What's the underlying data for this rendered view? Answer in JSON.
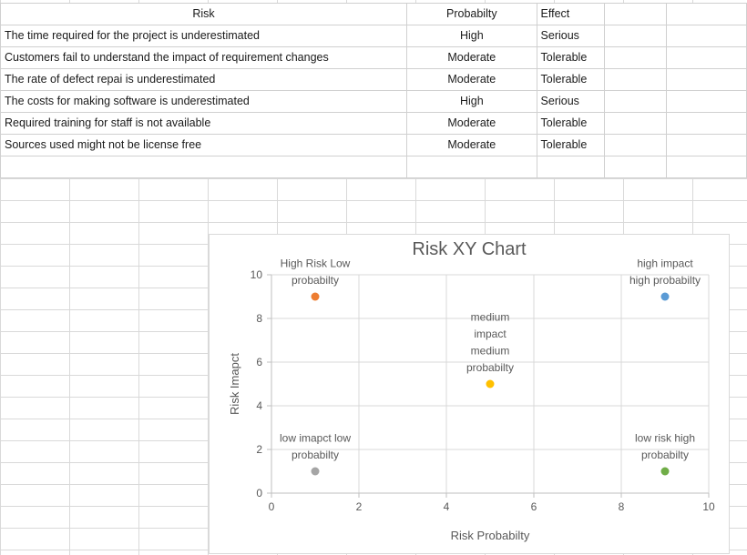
{
  "table": {
    "headers": {
      "risk": "Risk",
      "probability": "Probabilty",
      "effect": "Effect"
    },
    "rows": [
      {
        "risk": "The time required for the project is underestimated",
        "probability": "High",
        "effect": "Serious"
      },
      {
        "risk": "Customers fail to  understand the impact of requirement changes",
        "probability": "Moderate",
        "effect": "Tolerable"
      },
      {
        "risk": "The rate of defect repai is underestimated",
        "probability": "Moderate",
        "effect": "Tolerable"
      },
      {
        "risk": "The costs for making software is underestimated",
        "probability": "High",
        "effect": "Serious"
      },
      {
        "risk": "Required training for staff is not available",
        "probability": "Moderate",
        "effect": "Tolerable"
      },
      {
        "risk": "Sources used might not be license free",
        "probability": "Moderate",
        "effect": "Tolerable"
      }
    ]
  },
  "chart_data": {
    "type": "scatter",
    "title": "Risk XY Chart",
    "xlabel": "Risk Probabilty",
    "ylabel": "Risk Imapct",
    "xlim": [
      0,
      10
    ],
    "ylim": [
      0,
      10
    ],
    "xticks": [
      0,
      2,
      4,
      6,
      8,
      10
    ],
    "yticks": [
      0,
      2,
      4,
      6,
      8,
      10
    ],
    "grid": true,
    "points": [
      {
        "x": 1,
        "y": 9,
        "color": "#ed7d31",
        "label": [
          "High Risk Low",
          "probabilty"
        ]
      },
      {
        "x": 5,
        "y": 5,
        "color": "#ffc000",
        "label": [
          "medium",
          "impact",
          "medium",
          "probabilty"
        ]
      },
      {
        "x": 9,
        "y": 9,
        "color": "#5b9bd5",
        "label": [
          "high impact",
          "high probabilty"
        ]
      },
      {
        "x": 1,
        "y": 1,
        "color": "#a5a5a5",
        "label": [
          "low imapct low",
          "probabilty"
        ]
      },
      {
        "x": 9,
        "y": 1,
        "color": "#70ad47",
        "label": [
          "low risk high",
          "probabilty"
        ]
      }
    ]
  }
}
